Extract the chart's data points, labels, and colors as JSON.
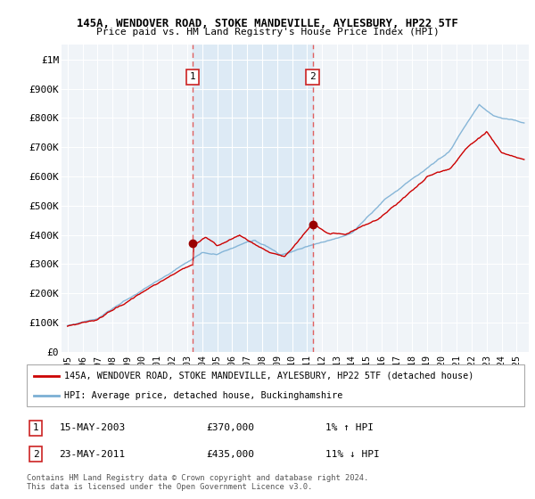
{
  "title1": "145A, WENDOVER ROAD, STOKE MANDEVILLE, AYLESBURY, HP22 5TF",
  "title2": "Price paid vs. HM Land Registry's House Price Index (HPI)",
  "ylabel_ticks": [
    "£0",
    "£100K",
    "£200K",
    "£300K",
    "£400K",
    "£500K",
    "£600K",
    "£700K",
    "£800K",
    "£900K",
    "£1M"
  ],
  "ytick_values": [
    0,
    100000,
    200000,
    300000,
    400000,
    500000,
    600000,
    700000,
    800000,
    900000,
    1000000
  ],
  "ylim": [
    0,
    1050000
  ],
  "xlim_start": 1994.6,
  "xlim_end": 2025.8,
  "xtick_years": [
    1995,
    1996,
    1997,
    1998,
    1999,
    2000,
    2001,
    2002,
    2003,
    2004,
    2005,
    2006,
    2007,
    2008,
    2009,
    2010,
    2011,
    2012,
    2013,
    2014,
    2015,
    2016,
    2017,
    2018,
    2019,
    2020,
    2021,
    2022,
    2023,
    2024,
    2025
  ],
  "sale1_x": 2003.37,
  "sale1_y": 370000,
  "sale1_label": "1",
  "sale2_x": 2011.38,
  "sale2_y": 435000,
  "sale2_label": "2",
  "vline1_x": 2003.37,
  "vline2_x": 2011.38,
  "hpi_color": "#7bafd4",
  "price_color": "#cc0000",
  "vline_color": "#e06060",
  "shade_color": "#ddeaf5",
  "bg_color": "#f0f4f8",
  "plot_bg": "#f0f4f8",
  "marker_color": "#990000",
  "legend_line1": "145A, WENDOVER ROAD, STOKE MANDEVILLE, AYLESBURY, HP22 5TF (detached house)",
  "legend_line2": "HPI: Average price, detached house, Buckinghamshire",
  "annot1_date": "15-MAY-2003",
  "annot1_price": "£370,000",
  "annot1_hpi": "1% ↑ HPI",
  "annot2_date": "23-MAY-2011",
  "annot2_price": "£435,000",
  "annot2_hpi": "11% ↓ HPI",
  "footer": "Contains HM Land Registry data © Crown copyright and database right 2024.\nThis data is licensed under the Open Government Licence v3.0."
}
